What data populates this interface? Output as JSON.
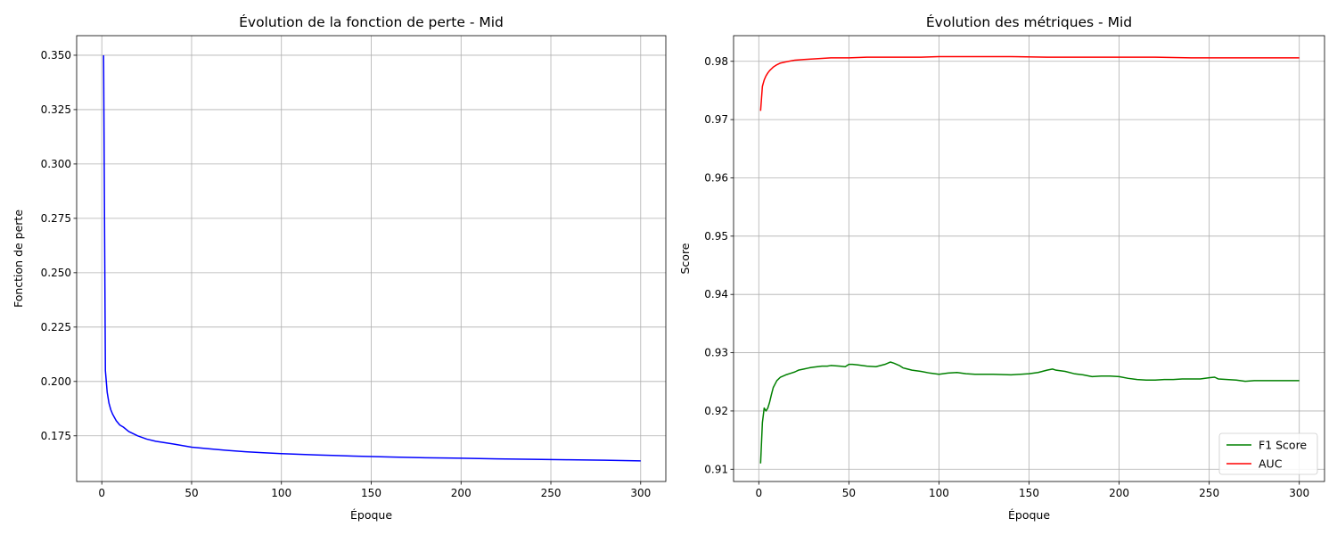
{
  "chart_data": [
    {
      "type": "line",
      "title": "Évolution de la fonction de perte - Mid",
      "xlabel": "Époque",
      "ylabel": "Fonction de perte",
      "xlim": [
        -14,
        314
      ],
      "ylim": [
        0.154,
        0.359
      ],
      "xticks": [
        0,
        50,
        100,
        150,
        200,
        250,
        300
      ],
      "yticks": [
        0.175,
        0.2,
        0.225,
        0.25,
        0.275,
        0.3,
        0.325,
        0.35
      ],
      "ytick_labels": [
        "0.175",
        "0.200",
        "0.225",
        "0.250",
        "0.275",
        "0.300",
        "0.325",
        "0.350"
      ],
      "grid": true,
      "series": [
        {
          "color": "#0000ff",
          "x": [
            1,
            2,
            3,
            4,
            5,
            6,
            8,
            10,
            12,
            15,
            20,
            25,
            30,
            40,
            50,
            60,
            70,
            80,
            90,
            100,
            120,
            140,
            160,
            180,
            200,
            220,
            240,
            260,
            280,
            300
          ],
          "y": [
            0.35,
            0.205,
            0.195,
            0.19,
            0.187,
            0.185,
            0.182,
            0.18,
            0.179,
            0.177,
            0.175,
            0.1735,
            0.1725,
            0.1712,
            0.1698,
            0.169,
            0.1683,
            0.1677,
            0.1672,
            0.1668,
            0.1662,
            0.1657,
            0.1653,
            0.1649,
            0.1647,
            0.1644,
            0.1642,
            0.164,
            0.1638,
            0.1635
          ]
        }
      ]
    },
    {
      "type": "line",
      "title": "Évolution des métriques - Mid",
      "xlabel": "Époque",
      "ylabel": "Score",
      "xlim": [
        -14,
        314
      ],
      "ylim": [
        0.9079,
        0.9844
      ],
      "xticks": [
        0,
        50,
        100,
        150,
        200,
        250,
        300
      ],
      "yticks": [
        0.91,
        0.92,
        0.93,
        0.94,
        0.95,
        0.96,
        0.97,
        0.98
      ],
      "ytick_labels": [
        "0.91",
        "0.92",
        "0.93",
        "0.94",
        "0.95",
        "0.96",
        "0.97",
        "0.98"
      ],
      "grid": true,
      "legend": "lower-right",
      "series": [
        {
          "name": "F1 Score",
          "color": "#008000",
          "x": [
            1,
            2,
            3,
            4,
            5,
            6,
            7,
            8,
            10,
            12,
            15,
            18,
            20,
            22,
            25,
            28,
            30,
            35,
            38,
            40,
            45,
            48,
            50,
            52,
            55,
            60,
            65,
            70,
            73,
            75,
            78,
            80,
            85,
            90,
            95,
            100,
            105,
            110,
            115,
            120,
            130,
            140,
            150,
            155,
            160,
            163,
            165,
            170,
            175,
            180,
            185,
            190,
            195,
            200,
            205,
            210,
            215,
            220,
            225,
            230,
            235,
            240,
            245,
            250,
            253,
            255,
            260,
            265,
            270,
            275,
            280,
            285,
            290,
            295,
            300
          ],
          "y": [
            0.911,
            0.918,
            0.9205,
            0.92,
            0.9205,
            0.9215,
            0.9228,
            0.924,
            0.9252,
            0.9258,
            0.9262,
            0.9265,
            0.9267,
            0.927,
            0.9272,
            0.9274,
            0.9275,
            0.9277,
            0.9277,
            0.9278,
            0.9277,
            0.9276,
            0.928,
            0.928,
            0.9279,
            0.9277,
            0.9276,
            0.928,
            0.9284,
            0.9282,
            0.9278,
            0.9274,
            0.927,
            0.9268,
            0.9265,
            0.9263,
            0.9265,
            0.9266,
            0.9264,
            0.9263,
            0.9263,
            0.9262,
            0.9264,
            0.9266,
            0.927,
            0.9272,
            0.927,
            0.9268,
            0.9264,
            0.9262,
            0.9259,
            0.926,
            0.926,
            0.9259,
            0.9256,
            0.9254,
            0.9253,
            0.9253,
            0.9254,
            0.9254,
            0.9255,
            0.9255,
            0.9255,
            0.9257,
            0.9258,
            0.9255,
            0.9254,
            0.9253,
            0.9251,
            0.9252,
            0.9252,
            0.9252,
            0.9252,
            0.9252,
            0.9252
          ]
        },
        {
          "name": "AUC",
          "color": "#ff0000",
          "x": [
            1,
            2,
            3,
            4,
            5,
            6,
            7,
            8,
            10,
            12,
            15,
            20,
            25,
            30,
            40,
            50,
            60,
            70,
            80,
            90,
            100,
            120,
            140,
            160,
            180,
            200,
            220,
            240,
            260,
            280,
            300
          ],
          "y": [
            0.9715,
            0.9757,
            0.9768,
            0.9775,
            0.978,
            0.9784,
            0.9787,
            0.979,
            0.9794,
            0.9797,
            0.9799,
            0.9802,
            0.9803,
            0.9804,
            0.9806,
            0.9806,
            0.9807,
            0.9807,
            0.9807,
            0.9807,
            0.9808,
            0.9808,
            0.9808,
            0.9807,
            0.9807,
            0.9807,
            0.9807,
            0.9806,
            0.9806,
            0.9806,
            0.9806
          ]
        }
      ]
    }
  ]
}
